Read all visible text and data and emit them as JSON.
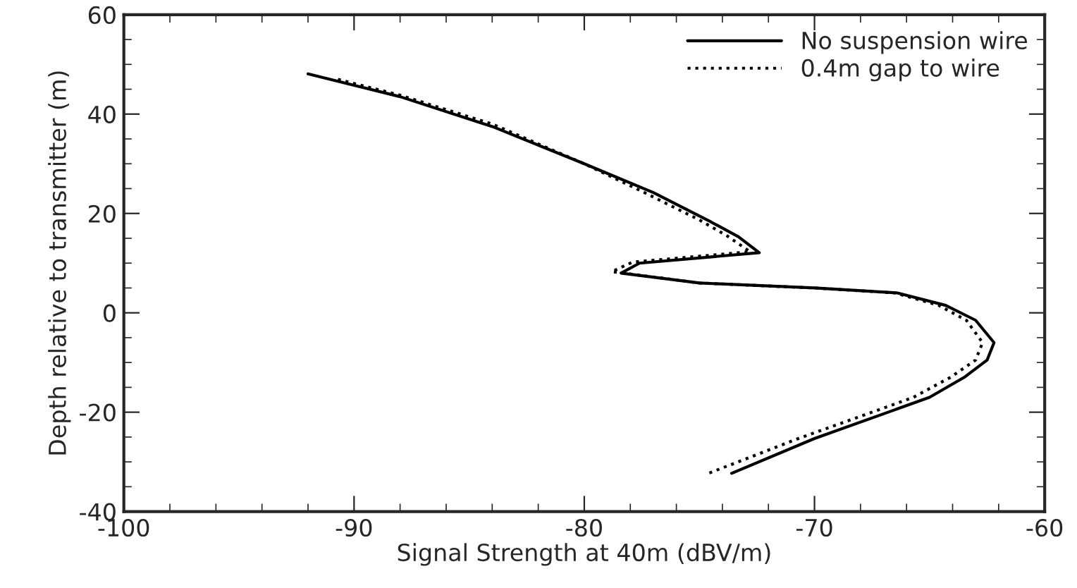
{
  "chart_data": {
    "type": "line",
    "xlabel": "Signal Strength at 40m (dBV/m)",
    "ylabel": "Depth relative to transmitter (m)",
    "xlim": [
      -100,
      -60
    ],
    "ylim": [
      -40,
      60
    ],
    "xticks": [
      -100,
      -90,
      -80,
      -70,
      -60
    ],
    "yticks": [
      -40,
      -20,
      0,
      20,
      40,
      60
    ],
    "grid": false,
    "legend": "top right",
    "series": [
      {
        "name": "No suspension wire",
        "color": "#000000",
        "line_style": "solid",
        "x": [
          -92,
          -88,
          -84,
          -80,
          -77,
          -74.5,
          -73.3,
          -72.4,
          -77.6,
          -78.4,
          -75,
          -70,
          -66.4,
          -64.3,
          -63,
          -62.2,
          -62.5,
          -63.5,
          -65,
          -66.8,
          -70,
          -73.6
        ],
        "values": [
          48.1,
          43.5,
          37.5,
          30,
          24.2,
          18.3,
          15.3,
          12.1,
          10,
          8,
          6,
          5,
          4,
          1.5,
          -1.5,
          -6,
          -9.5,
          -13,
          -17,
          -20,
          -25.3,
          -32.3
        ]
      },
      {
        "name": "0.4m gap to wire",
        "color": "#000000",
        "line_style": "dotted",
        "x": [
          -90.7,
          -88,
          -84,
          -80,
          -77.3,
          -75,
          -73.8,
          -72.8,
          -77.9,
          -78.8,
          -75,
          -70,
          -66.5,
          -64.6,
          -63.4,
          -62.7,
          -63,
          -64.1,
          -65.7,
          -67.5,
          -70.7,
          -74.6
        ],
        "values": [
          47,
          43.8,
          38,
          30,
          24,
          18.7,
          15.5,
          12.3,
          10.2,
          8.3,
          6,
          5,
          4,
          1.5,
          -1.5,
          -6,
          -9.5,
          -13,
          -17,
          -20,
          -25.3,
          -32.3
        ]
      }
    ]
  }
}
